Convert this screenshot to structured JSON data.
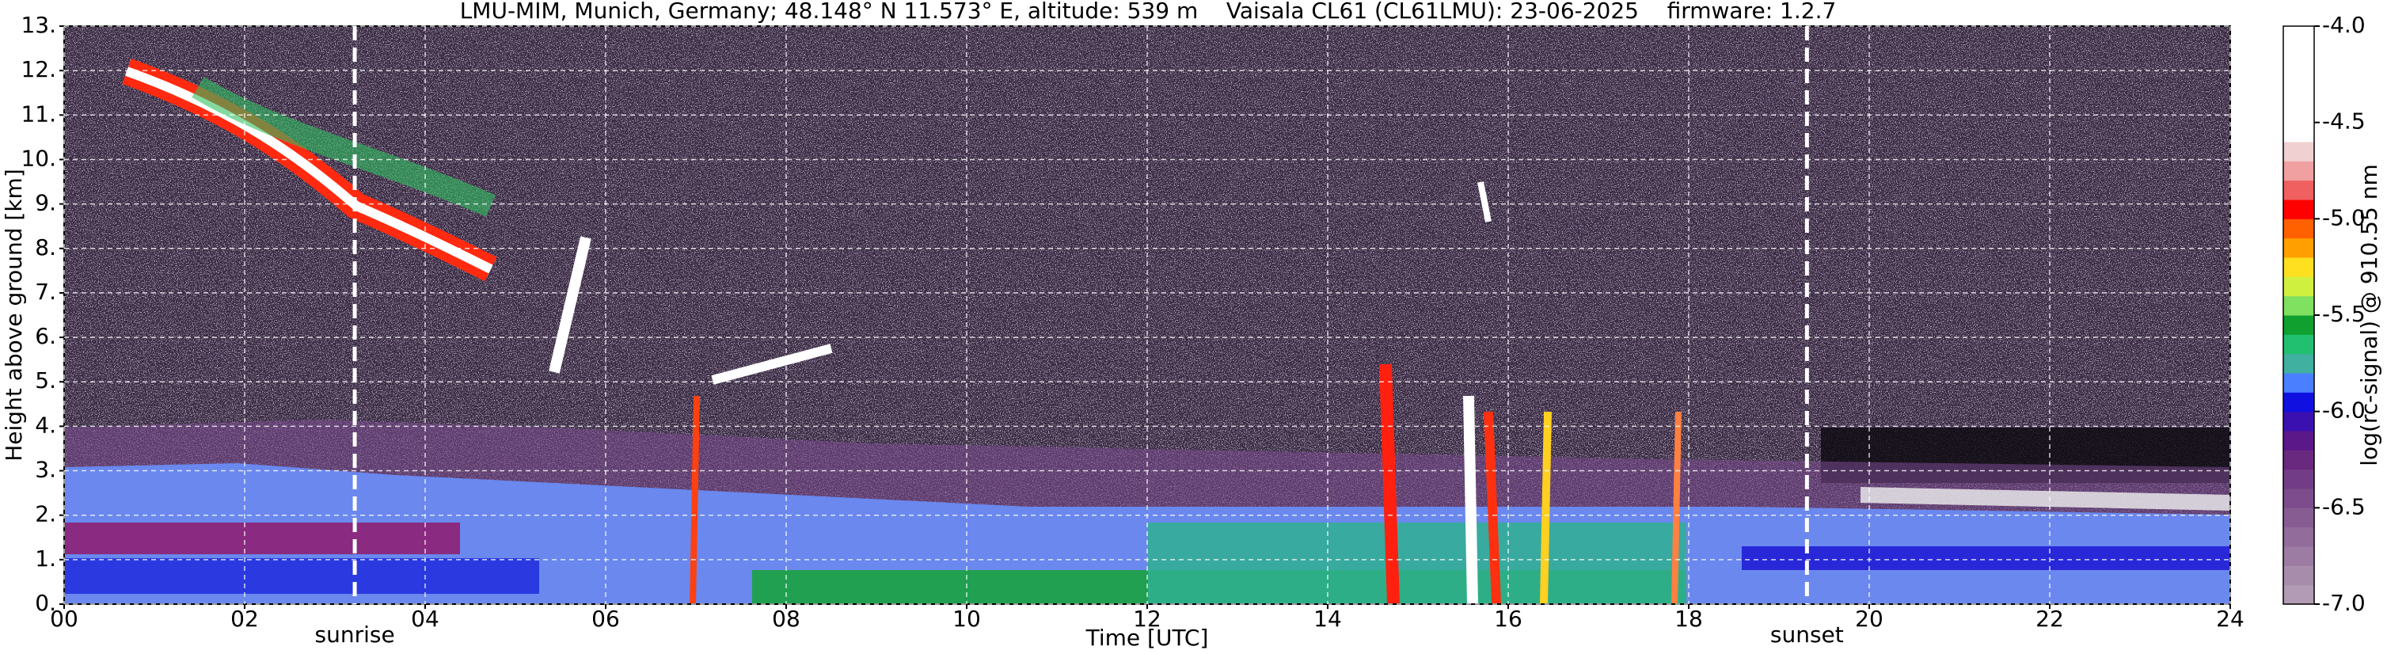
{
  "chart_data": {
    "type": "heatmap",
    "title": "LMU-MIM, Munich, Germany; 48.148° N 11.573° E, altitude: 539 m    Vaisala CL61 (CL61LMU): 23-06-2025    firmware: 1.2.7",
    "xlabel": "Time [UTC]",
    "ylabel": "Height above ground [km]",
    "xlim": [
      0,
      24
    ],
    "ylim": [
      0,
      13
    ],
    "xticks": [
      {
        "value": 0,
        "label": "00"
      },
      {
        "value": 2,
        "label": "02"
      },
      {
        "value": 4,
        "label": "04"
      },
      {
        "value": 6,
        "label": "06"
      },
      {
        "value": 8,
        "label": "08"
      },
      10,
      12,
      14,
      16,
      18,
      20,
      22,
      24
    ],
    "yticks": [
      {
        "value": 0,
        "label": "0."
      },
      {
        "value": 1,
        "label": "1."
      },
      {
        "value": 2,
        "label": "2."
      },
      {
        "value": 3,
        "label": "3."
      },
      {
        "value": 4,
        "label": "4."
      },
      {
        "value": 5,
        "label": "5."
      },
      {
        "value": 6,
        "label": "6."
      },
      {
        "value": 7,
        "label": "7."
      },
      {
        "value": 8,
        "label": "8."
      },
      {
        "value": 9,
        "label": "9."
      },
      {
        "value": 10,
        "label": "10."
      },
      {
        "value": 11,
        "label": "11."
      },
      {
        "value": 12,
        "label": "12."
      },
      {
        "value": 13,
        "label": "13."
      }
    ],
    "grid": true,
    "colorbar": {
      "label": "log(rc-signal) @ 910.55 nm",
      "lim": [
        -7,
        -4
      ],
      "ticks": [
        {
          "value": -7,
          "label": "-7.0"
        },
        -6.5,
        {
          "value": -6,
          "label": "-6.0"
        },
        -5.5,
        {
          "value": -5,
          "label": "-5.0"
        },
        -4.5,
        {
          "value": -4,
          "label": "-4.0"
        }
      ],
      "bounds": [
        -7,
        -6.9,
        -6.8,
        -6.7,
        -6.6,
        -6.5,
        -6.4,
        -6.3,
        -6.2,
        -6.1,
        -6,
        -5.9,
        -5.8,
        -5.7,
        -5.6,
        -5.5,
        -5.4,
        -5.3,
        -5.2,
        -5.1,
        -5,
        -4.9,
        -4.8,
        -4.7,
        -4.6,
        -4.5,
        -4.4,
        -4.3,
        -4.2,
        -4.1,
        -4
      ],
      "colors": [
        "#b29bb4",
        "#a78cab",
        "#9c7ca3",
        "#926c9b",
        "#875c93",
        "#7d4c8c",
        "#733c86",
        "#69297f",
        "#5b1888",
        "#3a10b0",
        "#1010e0",
        "#4a80ff",
        "#40b0a0",
        "#20c070",
        "#10a030",
        "#80e060",
        "#d0f040",
        "#ffe020",
        "#ffa000",
        "#ff6000",
        "#ff0000",
        "#f06060",
        "#f0a0a0",
        "#f0d0d0",
        "#ffffff",
        "#ffffff",
        "#ffffff",
        "#ffffff",
        "#ffffff",
        "#ffffff"
      ]
    },
    "annotations": [
      {
        "text": "sunrise",
        "x": 3.22
      },
      {
        "text": "sunset",
        "x": 19.31
      }
    ]
  }
}
